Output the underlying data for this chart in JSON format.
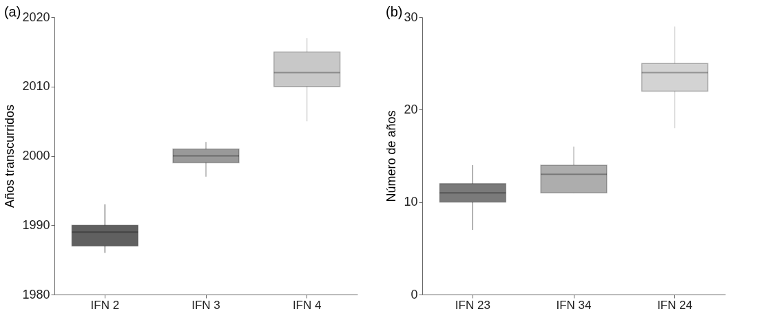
{
  "chart_data": [
    {
      "type": "box",
      "title": "(a)",
      "ylabel": "Años transcurridos",
      "categories": [
        "IFN 2",
        "IFN 3",
        "IFN 4"
      ],
      "boxes": [
        {
          "low": 1986,
          "q1": 1987,
          "median": 1989,
          "q3": 1990,
          "high": 1993
        },
        {
          "low": 1997,
          "q1": 1999,
          "median": 2000,
          "q3": 2001,
          "high": 2002
        },
        {
          "low": 2005,
          "q1": 2010,
          "median": 2012,
          "q3": 2015,
          "high": 2017
        }
      ],
      "colors": [
        "#606060",
        "#999999",
        "#c8c8c8"
      ],
      "ylim": [
        1980,
        2020
      ],
      "yticks": [
        1980,
        1990,
        2000,
        2010,
        2020
      ],
      "grid": false,
      "legend": false
    },
    {
      "type": "box",
      "title": "(b)",
      "ylabel": "Número de años",
      "categories": [
        "IFN 23",
        "IFN 34",
        "IFN 24"
      ],
      "boxes": [
        {
          "low": 7,
          "q1": 10,
          "median": 11,
          "q3": 12,
          "high": 14
        },
        {
          "low": 11,
          "q1": 11,
          "median": 13,
          "q3": 14,
          "high": 16
        },
        {
          "low": 18,
          "q1": 22,
          "median": 24,
          "q3": 25,
          "high": 29
        }
      ],
      "colors": [
        "#7a7a7a",
        "#adadad",
        "#d3d3d3"
      ],
      "ylim": [
        0,
        30
      ],
      "yticks": [
        0,
        10,
        20,
        30
      ],
      "grid": false,
      "legend": false
    }
  ]
}
